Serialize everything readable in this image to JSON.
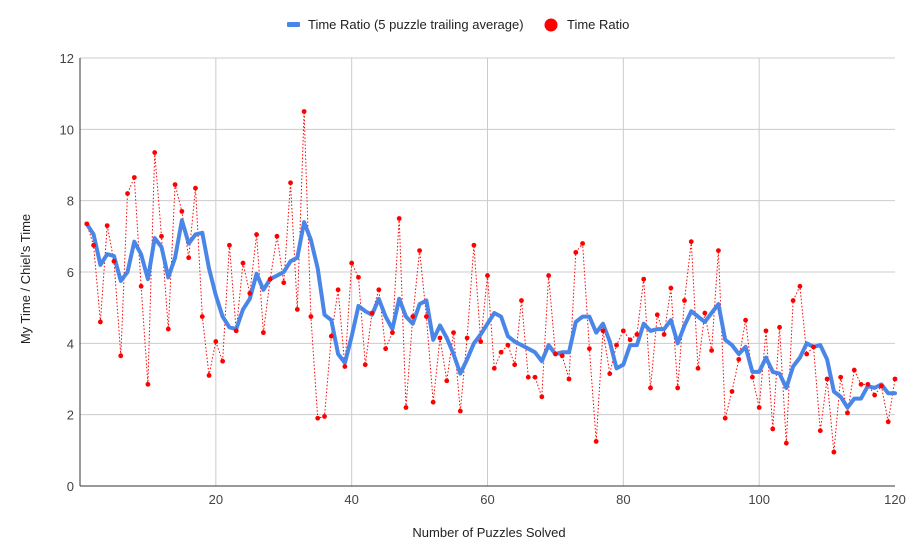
{
  "chart_data": {
    "type": "line",
    "xlabel": "Number of Puzzles Solved",
    "ylabel": "My Time / Chiel's Time",
    "xlim": [
      0,
      120
    ],
    "ylim": [
      0,
      12
    ],
    "xticks": [
      20,
      40,
      60,
      80,
      100,
      120
    ],
    "yticks": [
      0,
      2,
      4,
      6,
      8,
      10,
      12
    ],
    "grid": true,
    "legend": "top",
    "series": [
      {
        "name": "Time Ratio (5 puzzle trailing average)",
        "style": "line",
        "color": "#4a86e8",
        "values": [
          7.35,
          7.05,
          6.2,
          6.5,
          6.45,
          5.75,
          6.0,
          6.85,
          6.5,
          5.8,
          6.95,
          6.7,
          5.85,
          6.4,
          7.45,
          6.8,
          7.05,
          7.1,
          6.1,
          5.35,
          4.75,
          4.45,
          4.4,
          4.95,
          5.25,
          5.95,
          5.5,
          5.8,
          5.9,
          6.0,
          6.3,
          6.4,
          7.4,
          6.9,
          6.1,
          4.8,
          4.65,
          3.7,
          3.45,
          4.2,
          5.05,
          4.9,
          4.8,
          5.25,
          4.75,
          4.4,
          5.25,
          4.75,
          4.55,
          5.1,
          5.2,
          4.1,
          4.5,
          4.15,
          3.7,
          3.15,
          3.55,
          4.0,
          4.25,
          4.55,
          4.85,
          4.75,
          4.2,
          4.05,
          3.95,
          3.85,
          3.75,
          3.5,
          3.95,
          3.7,
          3.75,
          3.75,
          4.6,
          4.75,
          4.75,
          4.3,
          4.55,
          4.05,
          3.3,
          3.4,
          3.95,
          3.95,
          4.55,
          4.35,
          4.4,
          4.4,
          4.65,
          4.0,
          4.5,
          4.9,
          4.75,
          4.6,
          4.85,
          5.1,
          4.1,
          3.95,
          3.7,
          3.9,
          3.2,
          3.2,
          3.6,
          3.2,
          3.15,
          2.75,
          3.35,
          3.6,
          4.0,
          3.9,
          3.95,
          3.55,
          2.65,
          2.5,
          2.2,
          2.45,
          2.45,
          2.8,
          2.75,
          2.85,
          2.6,
          2.6
        ]
      },
      {
        "name": "Time Ratio",
        "style": "scatter",
        "color": "#ff0000",
        "values": [
          7.35,
          6.75,
          4.6,
          7.3,
          6.3,
          3.65,
          8.2,
          8.65,
          5.6,
          2.85,
          9.35,
          7.0,
          4.4,
          8.45,
          7.7,
          6.4,
          8.35,
          4.75,
          3.1,
          4.05,
          3.5,
          6.75,
          4.35,
          6.25,
          5.4,
          7.05,
          4.3,
          5.8,
          7.0,
          5.7,
          8.5,
          4.95,
          10.5,
          4.75,
          1.9,
          1.95,
          4.2,
          5.5,
          3.35,
          6.25,
          5.85,
          3.4,
          4.85,
          5.5,
          3.85,
          4.3,
          7.5,
          2.2,
          4.75,
          6.6,
          4.75,
          2.35,
          4.15,
          2.95,
          4.3,
          2.1,
          4.15,
          6.75,
          4.05,
          5.9,
          3.3,
          3.75,
          3.95,
          3.4,
          5.2,
          3.05,
          3.05,
          2.5,
          5.9,
          3.7,
          3.65,
          3.0,
          6.55,
          6.8,
          3.85,
          1.25,
          4.35,
          3.15,
          3.95,
          4.35,
          4.1,
          4.25,
          5.8,
          2.75,
          4.8,
          4.25,
          5.55,
          2.75,
          5.2,
          6.85,
          3.3,
          4.85,
          3.8,
          6.6,
          1.9,
          2.65,
          3.55,
          4.65,
          3.05,
          2.2,
          4.35,
          1.6,
          4.45,
          1.2,
          5.2,
          5.6,
          3.7,
          3.9,
          1.55,
          3.0,
          0.95,
          3.05,
          2.05,
          3.25,
          2.85,
          2.85,
          2.55,
          2.8,
          1.8,
          3.0
        ]
      }
    ]
  }
}
